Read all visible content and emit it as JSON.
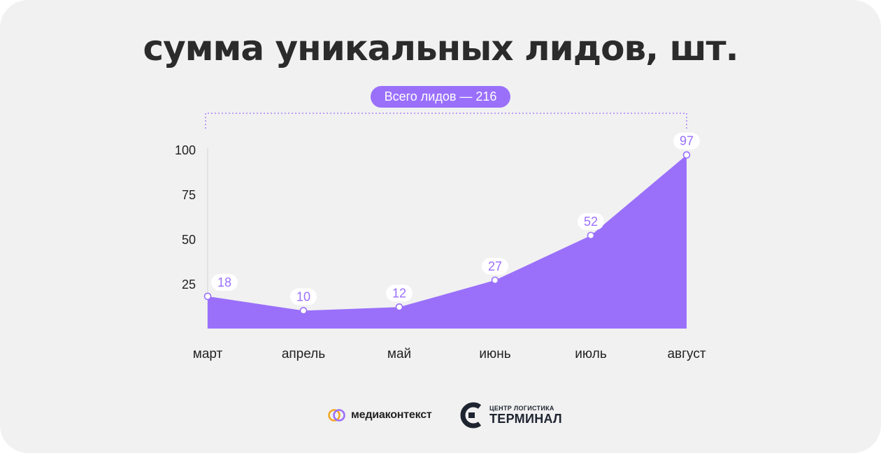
{
  "title": "сумма уникальных лидов, шт.",
  "total_label": "Всего лидов — 216",
  "chart_data": {
    "type": "area",
    "categories": [
      "март",
      "апрель",
      "май",
      "июнь",
      "июль",
      "август"
    ],
    "values": [
      18,
      10,
      12,
      27,
      52,
      97
    ],
    "data_labels": [
      "18",
      "10",
      "12",
      "27",
      "52",
      "97"
    ],
    "yticks": [
      "25",
      "50",
      "75",
      "100"
    ],
    "ytick_values": [
      25,
      50,
      75,
      100
    ],
    "ylim": [
      0,
      100
    ],
    "grid": false,
    "fill_color": "#9a70fb",
    "label_color": "#9a70fb"
  },
  "footer": {
    "brand1": "медиаконтекст",
    "brand2_line1": "ЦЕНТР ЛОГИСТИКА",
    "brand2_line2": "ТЕРМИНАЛ"
  },
  "colors": {
    "background": "#f1f1f1",
    "accent": "#9a70fb",
    "text": "#2b2b2b"
  }
}
